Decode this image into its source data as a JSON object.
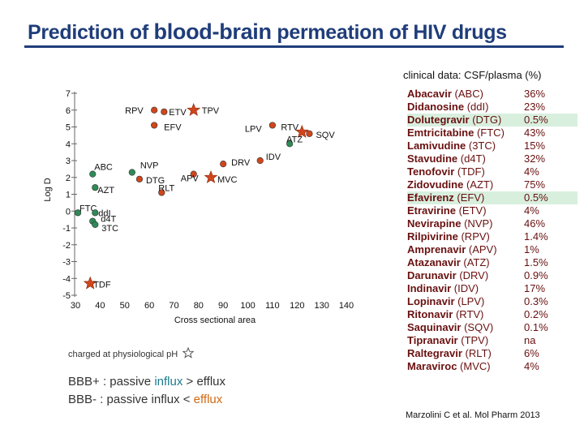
{
  "title": {
    "part1": "Prediction of ",
    "part2": "blood-brain",
    "part3": " permeation of HIV drugs"
  },
  "chart_data": {
    "type": "scatter",
    "xlabel": "Cross sectional area",
    "ylabel": "Log D",
    "xlim": [
      30,
      140
    ],
    "ylim": [
      -5,
      7
    ],
    "xticks": [
      30,
      40,
      50,
      60,
      70,
      80,
      90,
      100,
      110,
      120,
      130,
      140
    ],
    "yticks": [
      7,
      6,
      5,
      4,
      3,
      2,
      1,
      0,
      -1,
      -2,
      -3,
      -4,
      -5
    ],
    "grid": false,
    "points": [
      {
        "label": "RPV",
        "x": 62,
        "y": 6.0,
        "color": "#d0461c",
        "star": false,
        "lx": -36,
        "ly": 4
      },
      {
        "label": "ETV",
        "x": 66,
        "y": 5.9,
        "color": "#d0461c",
        "star": false,
        "lx": 6,
        "ly": 4
      },
      {
        "label": "EFV",
        "x": 62,
        "y": 5.1,
        "color": "#d0461c",
        "star": false,
        "lx": 12,
        "ly": 6
      },
      {
        "label": "TPV",
        "x": 78,
        "y": 6.0,
        "color": "#d0461c",
        "star": true,
        "lx": 10,
        "ly": 4
      },
      {
        "label": "LPV",
        "x": 110,
        "y": 5.1,
        "color": "#d0461c",
        "star": false,
        "lx": -34,
        "ly": 8
      },
      {
        "label": "RTV",
        "x": 122,
        "y": 4.7,
        "color": "#d0461c",
        "star": true,
        "lx": -26,
        "ly": -2
      },
      {
        "label": "SQV",
        "x": 125,
        "y": 4.6,
        "color": "#d0461c",
        "star": false,
        "lx": 8,
        "ly": 5
      },
      {
        "label": "ATZ",
        "x": 117,
        "y": 4.0,
        "color": "#2e8b57",
        "star": false,
        "lx": -4,
        "ly": -2
      },
      {
        "label": "DRV",
        "x": 90,
        "y": 2.8,
        "color": "#d0461c",
        "star": false,
        "lx": 10,
        "ly": 2
      },
      {
        "label": "IDV",
        "x": 105,
        "y": 3.0,
        "color": "#d0461c",
        "star": false,
        "lx": 7,
        "ly": -1
      },
      {
        "label": "APV",
        "x": 78,
        "y": 2.2,
        "color": "#d0461c",
        "star": false,
        "lx": -16,
        "ly": 9
      },
      {
        "label": "MVC",
        "x": 85,
        "y": 2.0,
        "color": "#d0461c",
        "star": true,
        "lx": 8,
        "ly": 6
      },
      {
        "label": "NVP",
        "x": 53,
        "y": 2.3,
        "color": "#2e8b57",
        "star": false,
        "lx": 10,
        "ly": -5
      },
      {
        "label": "DTG",
        "x": 56,
        "y": 1.9,
        "color": "#d0461c",
        "star": false,
        "lx": 8,
        "ly": 5
      },
      {
        "label": "RLT",
        "x": 65,
        "y": 1.1,
        "color": "#d0461c",
        "star": false,
        "lx": -4,
        "ly": -2
      },
      {
        "label": "ABC",
        "x": 37,
        "y": 2.2,
        "color": "#2e8b57",
        "star": false,
        "lx": 2,
        "ly": -5
      },
      {
        "label": "AZT",
        "x": 38,
        "y": 1.4,
        "color": "#2e8b57",
        "star": false,
        "lx": 3,
        "ly": 7
      },
      {
        "label": "FTC",
        "x": 31,
        "y": -0.1,
        "color": "#2e8b57",
        "star": false,
        "lx": 2,
        "ly": -2
      },
      {
        "label": "ddI",
        "x": 38,
        "y": -0.1,
        "color": "#2e8b57",
        "star": false,
        "lx": 4,
        "ly": 4
      },
      {
        "label": "d4T",
        "x": 37,
        "y": -0.6,
        "color": "#2e8b57",
        "star": false,
        "lx": 10,
        "ly": 1
      },
      {
        "label": "3TC",
        "x": 38,
        "y": -0.8,
        "color": "#2e8b57",
        "star": false,
        "lx": 8,
        "ly": 8
      },
      {
        "label": "TDF",
        "x": 36,
        "y": -4.3,
        "color": "#d0461c",
        "star": true,
        "lx": 4,
        "ly": 5
      }
    ]
  },
  "clinical_header": "clinical data:  CSF/plasma (%)",
  "drugs": [
    {
      "name": "Abacavir",
      "abbr": "(ABC)",
      "value": "36%",
      "highlight": false
    },
    {
      "name": "Didanosine",
      "abbr": "(ddI)",
      "value": "23%",
      "highlight": false
    },
    {
      "name": "Dolutegravir",
      "abbr": "(DTG)",
      "value": "0.5%",
      "highlight": true
    },
    {
      "name": "Emtricitabine",
      "abbr": "(FTC)",
      "value": "43%",
      "highlight": false
    },
    {
      "name": "Lamivudine",
      "abbr": "(3TC)",
      "value": "15%",
      "highlight": false
    },
    {
      "name": "Stavudine",
      "abbr": "(d4T)",
      "value": "32%",
      "highlight": false
    },
    {
      "name": "Tenofovir",
      "abbr": "(TDF)",
      "value": "4%",
      "highlight": false
    },
    {
      "name": "Zidovudine",
      "abbr": "(AZT)",
      "value": "75%",
      "highlight": false
    },
    {
      "name": "Efavirenz",
      "abbr": "(EFV)",
      "value": "0.5%",
      "highlight": true
    },
    {
      "name": "Etravirine",
      "abbr": "(ETV)",
      "value": "4%",
      "highlight": false
    },
    {
      "name": "Nevirapine",
      "abbr": "(NVP)",
      "value": "46%",
      "highlight": false
    },
    {
      "name": "Rilpivirine",
      "abbr": "(RPV)",
      "value": "1.4%",
      "highlight": false
    },
    {
      "name": "Amprenavir",
      "abbr": "(APV)",
      "value": "1%",
      "highlight": false
    },
    {
      "name": "Atazanavir",
      "abbr": "(ATZ)",
      "value": "1.5%",
      "highlight": false
    },
    {
      "name": "Darunavir",
      "abbr": "(DRV)",
      "value": "0.9%",
      "highlight": false
    },
    {
      "name": "Indinavir",
      "abbr": "(IDV)",
      "value": "17%",
      "highlight": false
    },
    {
      "name": "Lopinavir",
      "abbr": "(LPV)",
      "value": "0.3%",
      "highlight": false
    },
    {
      "name": "Ritonavir",
      "abbr": "(RTV)",
      "value": "0.2%",
      "highlight": false
    },
    {
      "name": "Saquinavir",
      "abbr": "(SQV)",
      "value": "0.1%",
      "highlight": false
    },
    {
      "name": "Tipranavir",
      "abbr": "(TPV)",
      "value": "na",
      "highlight": false
    },
    {
      "name": "Raltegravir",
      "abbr": "(RLT)",
      "value": "6%",
      "highlight": false
    },
    {
      "name": "Maraviroc",
      "abbr": "(MVC)",
      "value": "4%",
      "highlight": false
    }
  ],
  "notes": {
    "charged": "charged at physiological pH",
    "bbb_plus": {
      "prefix": "BBB+ : passive ",
      "word1": "influx",
      "mid": " > efflux",
      "word2": ""
    },
    "bbb_minus": {
      "prefix": "BBB-  : passive influx < ",
      "word1": "",
      "mid": "",
      "word2": "efflux"
    }
  },
  "citation": "Marzolini C et al. Mol Pharm 2013"
}
